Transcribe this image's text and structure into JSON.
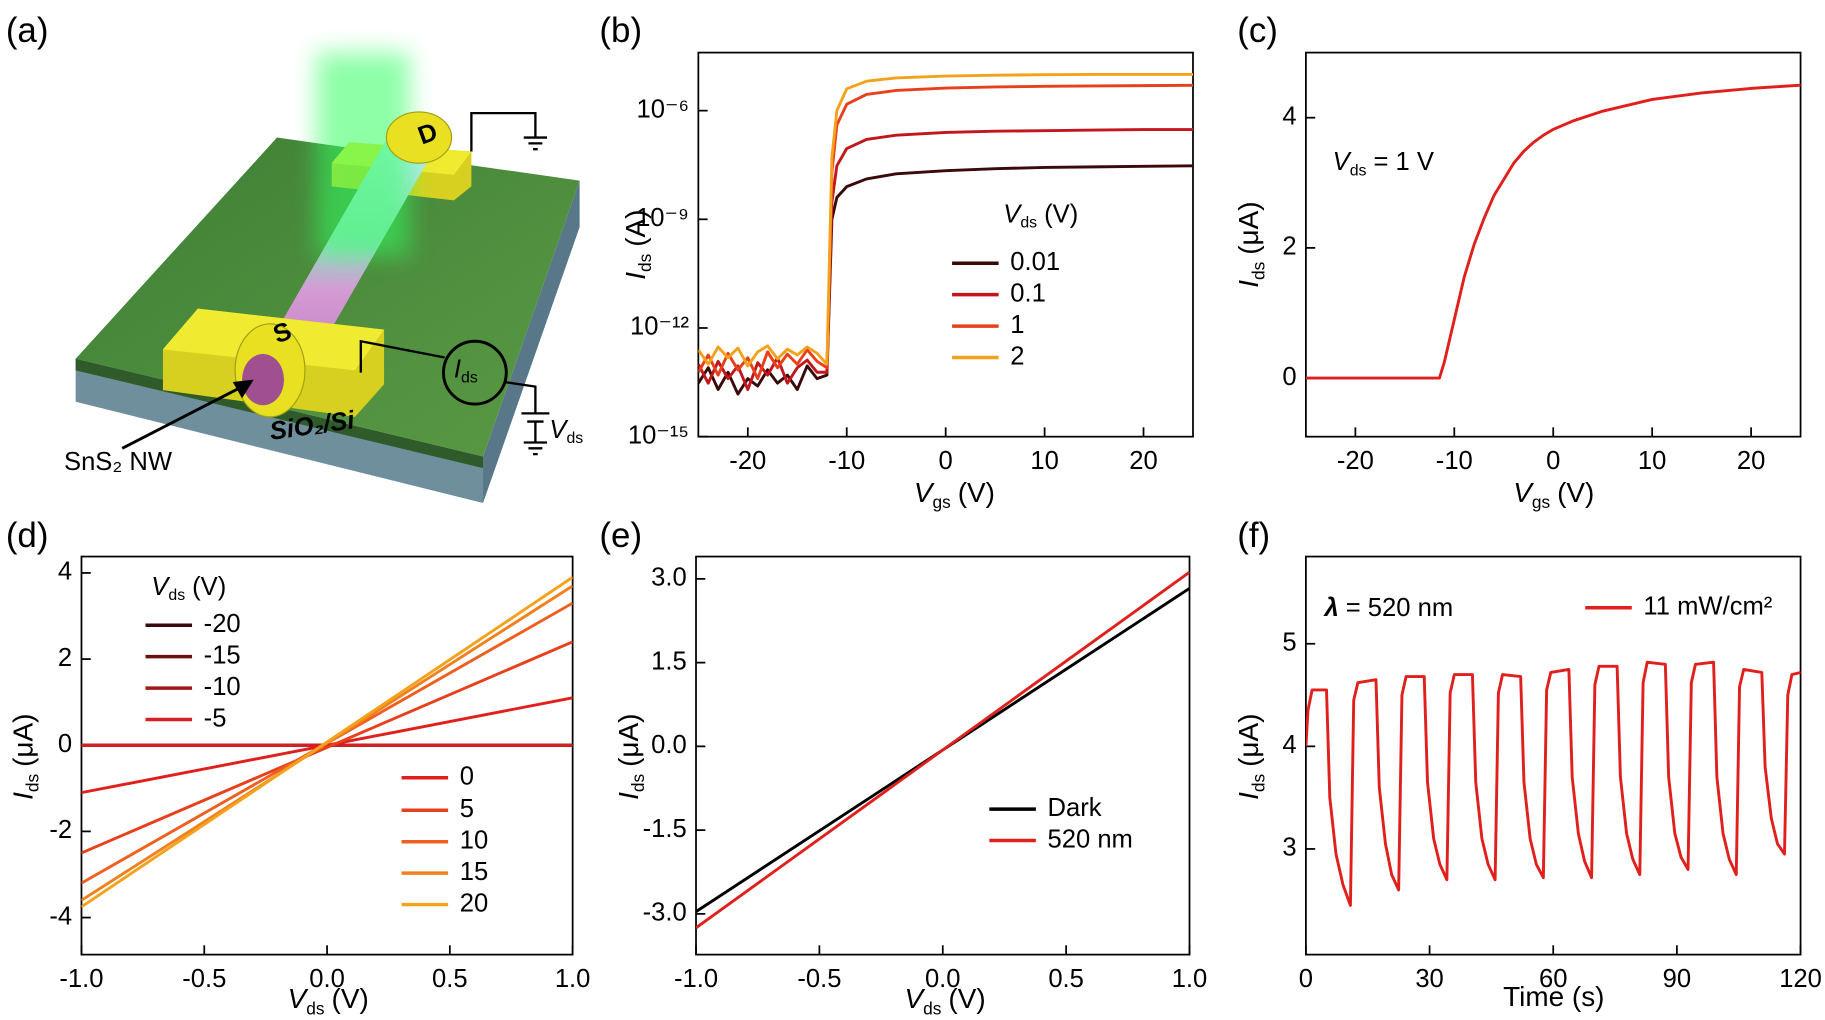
{
  "diagram": {
    "panel": "(a)",
    "source": "S",
    "drain": "D",
    "nanowire": "SnS₂ NW",
    "substrate": "SiO₂/Si",
    "current": {
      "symbol": "I",
      "subscript": "ds"
    },
    "voltage": {
      "symbol": "V",
      "subscript": "ds"
    }
  },
  "chart_data": [
    {
      "type": "line",
      "panel": "(b)",
      "log_y": true,
      "xlabel": {
        "symbol": "V",
        "subscript": "gs",
        "text": "(V)"
      },
      "ylabel": {
        "symbol": "I",
        "subscript": "ds",
        "text": "(A)"
      },
      "legend_title": {
        "symbol": "V",
        "subscript": "ds",
        "text": "(V)"
      },
      "xlim": [
        -25,
        25
      ],
      "xticks": [
        -20,
        -10,
        0,
        10,
        20
      ],
      "ylim": [
        1e-15,
        4e-05
      ],
      "yticks": [
        {
          "value": 1e-15,
          "label": "10⁻¹⁵"
        },
        {
          "value": 1e-12,
          "label": "10⁻¹²"
        },
        {
          "value": 1e-09,
          "label": "10⁻⁹"
        },
        {
          "value": 1e-06,
          "label": "10⁻⁶"
        }
      ],
      "x": [
        -25,
        -24,
        -23,
        -22,
        -21,
        -20,
        -19,
        -18,
        -17,
        -16,
        -15,
        -14,
        -13,
        -12,
        -11.5,
        -11,
        -10,
        -8,
        -5,
        0,
        5,
        10,
        15,
        20,
        25
      ],
      "series": [
        {
          "name": "0.01",
          "color": "#3a0a0a",
          "values": [
            3e-14,
            8e-14,
            2e-14,
            6e-14,
            1.5e-14,
            4e-14,
            2.5e-14,
            7e-14,
            3e-14,
            5e-14,
            2e-14,
            9e-14,
            4e-14,
            5e-14,
            1e-09,
            4e-09,
            8e-09,
            1.3e-08,
            1.8e-08,
            2.2e-08,
            2.5e-08,
            2.7e-08,
            2.8e-08,
            2.9e-08,
            3e-08
          ]
        },
        {
          "name": "0.1",
          "color": "#c0161c",
          "values": [
            1e-13,
            3e-14,
            1.2e-13,
            4e-14,
            9e-14,
            2e-14,
            1.1e-13,
            5e-14,
            1.5e-13,
            3e-14,
            8e-14,
            1.3e-13,
            6e-14,
            6e-14,
            3e-09,
            3e-08,
            9e-08,
            1.6e-07,
            2.1e-07,
            2.5e-07,
            2.7e-07,
            2.8e-07,
            2.9e-07,
            3e-07,
            3e-07
          ]
        },
        {
          "name": "1",
          "color": "#e8401c",
          "values": [
            6e-14,
            1.8e-13,
            5e-14,
            2e-13,
            7e-14,
            1.5e-13,
            4e-14,
            2.2e-13,
            8e-14,
            1.9e-13,
            1e-13,
            2.5e-13,
            1.2e-13,
            8e-14,
            2e-08,
            4e-07,
            1.5e-06,
            2.8e-06,
            3.6e-06,
            4.2e-06,
            4.5e-06,
            4.7e-06,
            4.8e-06,
            4.9e-06,
            5e-06
          ]
        },
        {
          "name": "2",
          "color": "#f4a21c",
          "values": [
            2.5e-13,
            1e-13,
            3e-13,
            1.5e-13,
            2.8e-13,
            9e-14,
            2.2e-13,
            3.2e-13,
            1.4e-13,
            2.6e-13,
            1.8e-13,
            3e-13,
            2e-13,
            1e-13,
            5e-08,
            1e-06,
            4e-06,
            6.5e-06,
            8e-06,
            9e-06,
            9.5e-06,
            9.8e-06,
            1e-05,
            1e-05,
            1e-05
          ]
        }
      ]
    },
    {
      "type": "line",
      "panel": "(c)",
      "xlabel": {
        "symbol": "V",
        "subscript": "gs",
        "text": "(V)"
      },
      "ylabel": {
        "symbol": "I",
        "subscript": "ds",
        "text": "(μA)"
      },
      "annotation": {
        "symbol": "V",
        "subscript": "ds",
        "text": "= 1 V"
      },
      "xlim": [
        -25,
        25
      ],
      "xticks": [
        -20,
        -10,
        0,
        10,
        20
      ],
      "ylim": [
        -0.9,
        5
      ],
      "yticks": [
        0,
        2,
        4
      ],
      "x": [
        -25,
        -11.5,
        -11,
        -10,
        -9,
        -8,
        -7,
        -6,
        -5,
        -4,
        -3,
        -2,
        -1,
        0,
        2,
        5,
        10,
        15,
        20,
        25
      ],
      "series": [
        {
          "color": "#e0201c",
          "values": [
            0,
            0,
            0.25,
            0.9,
            1.55,
            2.05,
            2.45,
            2.8,
            3.05,
            3.3,
            3.48,
            3.62,
            3.73,
            3.82,
            3.95,
            4.1,
            4.28,
            4.38,
            4.45,
            4.5
          ]
        }
      ]
    },
    {
      "type": "line",
      "panel": "(d)",
      "xlabel": {
        "symbol": "V",
        "subscript": "ds",
        "text": "(V)"
      },
      "ylabel": {
        "symbol": "I",
        "subscript": "ds",
        "text": "(μA)"
      },
      "legend_title": {
        "symbol": "V",
        "subscript": "ds",
        "text": "(V)"
      },
      "xlim": [
        -1,
        1
      ],
      "xticks": [
        {
          "value": -1,
          "label": "-1.0"
        },
        {
          "value": -0.5,
          "label": "-0.5"
        },
        {
          "value": 0,
          "label": "0.0"
        },
        {
          "value": 0.5,
          "label": "0.5"
        },
        {
          "value": 1,
          "label": "1.0"
        }
      ],
      "ylim": [
        -4.86,
        4.38
      ],
      "yticks": [
        -4,
        -2,
        0,
        2,
        4
      ],
      "x": [
        -1,
        1
      ],
      "series": [
        {
          "name": "-20",
          "color": "#3a0a0a",
          "values": [
            0,
            0
          ]
        },
        {
          "name": "-15",
          "color": "#6b1010",
          "values": [
            0,
            0
          ]
        },
        {
          "name": "-10",
          "color": "#a01818",
          "values": [
            0,
            0
          ]
        },
        {
          "name": "-5",
          "color": "#d42020",
          "values": [
            0,
            0
          ]
        },
        {
          "name": "0",
          "color": "#e0201c",
          "values": [
            -1.1,
            1.1
          ]
        },
        {
          "name": "5",
          "color": "#e8401c",
          "values": [
            -2.5,
            2.4
          ]
        },
        {
          "name": "10",
          "color": "#ee6020",
          "values": [
            -3.2,
            3.3
          ]
        },
        {
          "name": "15",
          "color": "#f08020",
          "values": [
            -3.6,
            3.7
          ]
        },
        {
          "name": "20",
          "color": "#f4a21c",
          "values": [
            -3.75,
            3.9
          ]
        }
      ]
    },
    {
      "type": "line",
      "panel": "(e)",
      "xlabel": {
        "symbol": "V",
        "subscript": "ds",
        "text": "(V)"
      },
      "ylabel": {
        "symbol": "I",
        "subscript": "ds",
        "text": "(μA)"
      },
      "xlim": [
        -1,
        1
      ],
      "xticks": [
        {
          "value": -1,
          "label": "-1.0"
        },
        {
          "value": -0.5,
          "label": "-0.5"
        },
        {
          "value": 0,
          "label": "0.0"
        },
        {
          "value": 0.5,
          "label": "0.5"
        },
        {
          "value": 1,
          "label": "1.0"
        }
      ],
      "ylim": [
        -3.73,
        3.4
      ],
      "yticks": [
        {
          "value": -3,
          "label": "-3.0"
        },
        {
          "value": -1.5,
          "label": "-1.5"
        },
        {
          "value": 0,
          "label": "0.0"
        },
        {
          "value": 1.5,
          "label": "1.5"
        },
        {
          "value": 3,
          "label": "3.0"
        }
      ],
      "x": [
        -1,
        1
      ],
      "series": [
        {
          "name": "Dark",
          "color": "#000000",
          "values": [
            -2.96,
            2.83
          ]
        },
        {
          "name": "520 nm",
          "color": "#e0201c",
          "values": [
            -3.25,
            3.12
          ]
        }
      ]
    },
    {
      "type": "line",
      "panel": "(f)",
      "xlabel": "Time (s)",
      "ylabel": {
        "symbol": "I",
        "subscript": "ds",
        "text": "(μA)"
      },
      "annotation": {
        "symbol": "λ",
        "text": "= 520 nm"
      },
      "xlim": [
        0,
        120
      ],
      "xticks": [
        0,
        30,
        60,
        90,
        120
      ],
      "ylim": [
        1.97,
        5.85
      ],
      "yticks": [
        3,
        4,
        5
      ],
      "x": [
        0,
        0.5,
        1.5,
        5.0,
        5.8,
        7.3,
        9.0,
        10.8,
        11.6,
        12.6,
        17.0,
        17.8,
        19.3,
        20.8,
        22.5,
        23.3,
        24.3,
        28.7,
        29.5,
        31.0,
        32.5,
        34.2,
        35.0,
        36.0,
        40.4,
        41.2,
        42.7,
        44.2,
        45.9,
        46.7,
        47.7,
        52.1,
        52.9,
        54.4,
        55.9,
        57.6,
        58.4,
        59.4,
        63.8,
        64.6,
        66.1,
        67.6,
        69.3,
        70.1,
        71.1,
        75.5,
        76.3,
        77.8,
        79.3,
        81.0,
        81.8,
        82.8,
        87.2,
        88.0,
        89.5,
        91.0,
        92.7,
        93.5,
        94.5,
        98.9,
        99.7,
        101.2,
        102.7,
        104.4,
        105.2,
        106.2,
        110.6,
        111.4,
        112.9,
        114.4,
        116.1,
        116.9,
        117.9,
        120
      ],
      "series": [
        {
          "name": "11 mW/cm²",
          "color": "#e0201c",
          "values": [
            4.0,
            4.35,
            4.55,
            4.55,
            3.5,
            2.95,
            2.65,
            2.45,
            4.45,
            4.62,
            4.65,
            3.6,
            3.05,
            2.75,
            2.6,
            4.5,
            4.68,
            4.68,
            3.65,
            3.1,
            2.85,
            2.7,
            4.52,
            4.7,
            4.7,
            3.65,
            3.1,
            2.85,
            2.7,
            4.52,
            4.7,
            4.68,
            3.65,
            3.1,
            2.85,
            2.72,
            4.55,
            4.72,
            4.75,
            3.7,
            3.15,
            2.88,
            2.72,
            4.6,
            4.78,
            4.78,
            3.7,
            3.15,
            2.9,
            2.75,
            4.62,
            4.82,
            4.8,
            3.7,
            3.15,
            2.92,
            2.8,
            4.62,
            4.8,
            4.82,
            3.7,
            3.15,
            2.9,
            2.75,
            4.58,
            4.75,
            4.72,
            3.8,
            3.3,
            3.05,
            2.95,
            4.5,
            4.7,
            4.72
          ]
        }
      ]
    }
  ]
}
